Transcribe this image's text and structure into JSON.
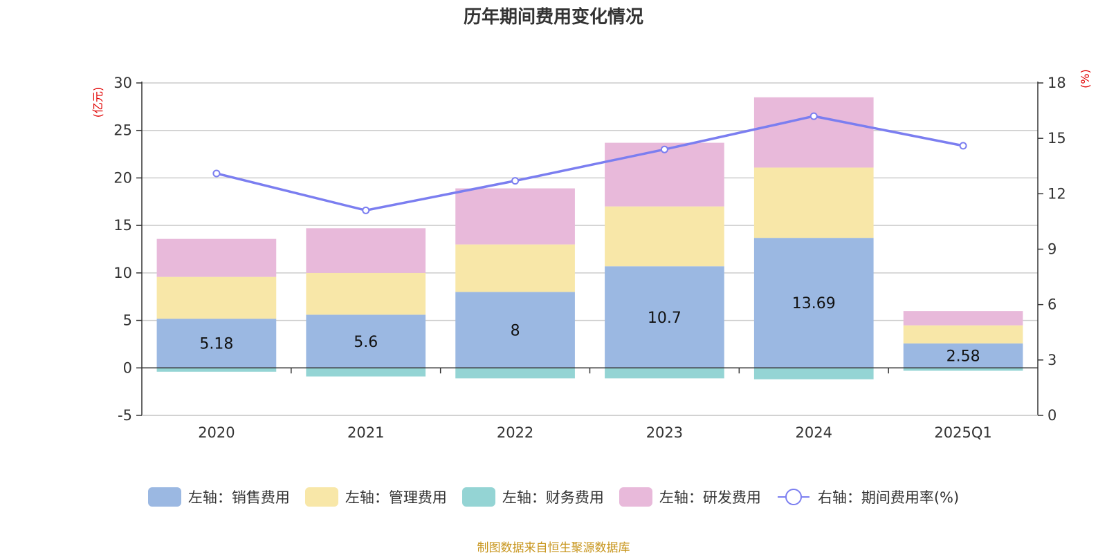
{
  "chart_data": {
    "type": "bar",
    "title": "历年期间费用变化情况",
    "categories": [
      "2020",
      "2021",
      "2022",
      "2023",
      "2024",
      "2025Q1"
    ],
    "series": [
      {
        "name": "左轴：销售费用",
        "axis": "left",
        "stack": "cost",
        "color": "#9bb8e2",
        "values": [
          5.18,
          5.6,
          8,
          10.7,
          13.69,
          2.58
        ]
      },
      {
        "name": "左轴：管理费用",
        "axis": "left",
        "stack": "cost",
        "color": "#f8e7a8",
        "values": [
          4.4,
          4.4,
          5.0,
          6.3,
          7.4,
          1.9
        ]
      },
      {
        "name": "左轴：财务费用",
        "axis": "left",
        "stack": "cost",
        "color": "#94d4d4",
        "values": [
          -0.4,
          -0.9,
          -1.1,
          -1.1,
          -1.2,
          -0.3
        ]
      },
      {
        "name": "左轴：研发费用",
        "axis": "left",
        "stack": "cost",
        "color": "#e8b9da",
        "values": [
          4.0,
          4.7,
          5.9,
          6.7,
          7.4,
          1.5
        ]
      },
      {
        "name": "右轴：期间费用率(%)",
        "axis": "right",
        "type": "line",
        "color": "#7b7ef0",
        "values": [
          13.1,
          11.1,
          12.7,
          14.4,
          16.2,
          14.6
        ]
      }
    ],
    "data_labels": [
      "5.18",
      "5.6",
      "8",
      "10.7",
      "13.69",
      "2.58"
    ],
    "y_left": {
      "unit": "(亿元)",
      "min": -5,
      "max": 30,
      "ticks": [
        30,
        25,
        20,
        15,
        10,
        5,
        0,
        -5
      ]
    },
    "y_right": {
      "unit": "(%)",
      "min": 0,
      "max": 18,
      "ticks": [
        18,
        15,
        12,
        9,
        6,
        3,
        0
      ]
    },
    "grid": true,
    "legend_position": "bottom"
  },
  "source": "制图数据来自恒生聚源数据库"
}
